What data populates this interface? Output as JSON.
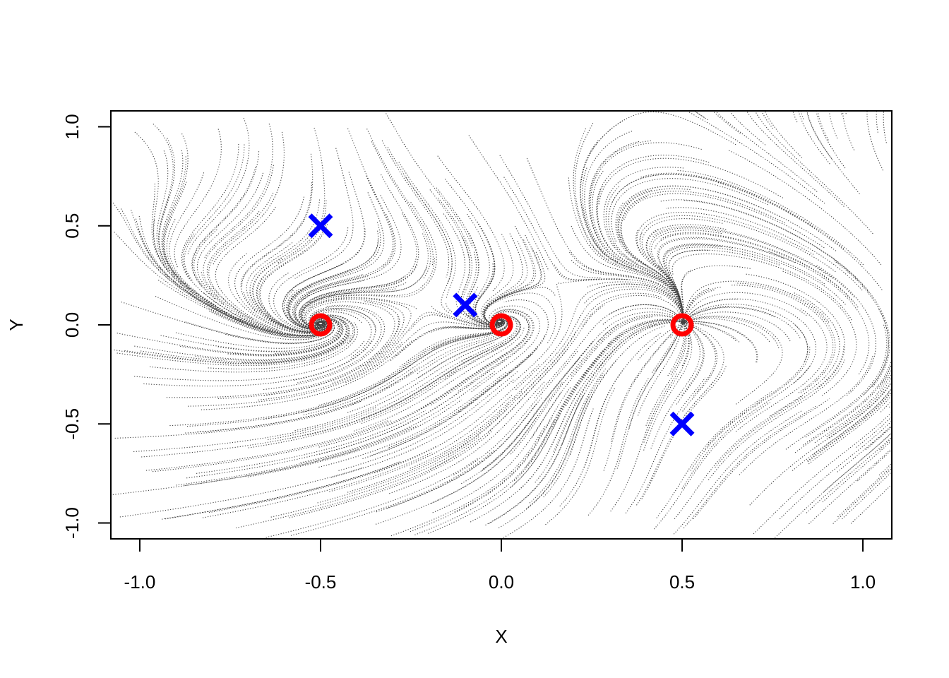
{
  "chart_data": {
    "type": "scatter",
    "title": "",
    "xlabel": "X",
    "ylabel": "Y",
    "xlim": [
      -1.08,
      1.08
    ],
    "ylim": [
      -1.08,
      1.08
    ],
    "x_ticks": [
      -1.0,
      -0.5,
      0.0,
      0.5,
      1.0
    ],
    "x_tick_labels": [
      "-1.0",
      "-0.5",
      "0.0",
      "0.5",
      "1.0"
    ],
    "y_ticks": [
      -1.0,
      -0.5,
      0.0,
      0.5,
      1.0
    ],
    "y_tick_labels": [
      "-1.0",
      "-0.5",
      "0.0",
      "0.5",
      "1.0"
    ],
    "grid": false,
    "series": [
      {
        "marker": "circle",
        "color": "#ff0000",
        "points": [
          {
            "x": -0.5,
            "y": 0.0
          },
          {
            "x": 0.0,
            "y": 0.0
          },
          {
            "x": 0.5,
            "y": 0.0
          }
        ]
      },
      {
        "marker": "x",
        "color": "#0000ff",
        "points": [
          {
            "x": -0.5,
            "y": 0.5
          },
          {
            "x": -0.1,
            "y": 0.1
          },
          {
            "x": 0.5,
            "y": -0.5
          }
        ]
      }
    ],
    "flow_field": {
      "style": "dotted",
      "color": "#000000",
      "sources": [
        {
          "x": -0.5,
          "y": 0.0,
          "spiral": true
        },
        {
          "x": 0.0,
          "y": 0.0,
          "spiral": true
        },
        {
          "x": 0.5,
          "y": 0.0,
          "spiral": false
        }
      ],
      "saddles": [
        {
          "x": -0.5,
          "y": 0.5
        },
        {
          "x": -0.1,
          "y": 0.1
        },
        {
          "x": 0.5,
          "y": -0.5
        }
      ]
    }
  }
}
